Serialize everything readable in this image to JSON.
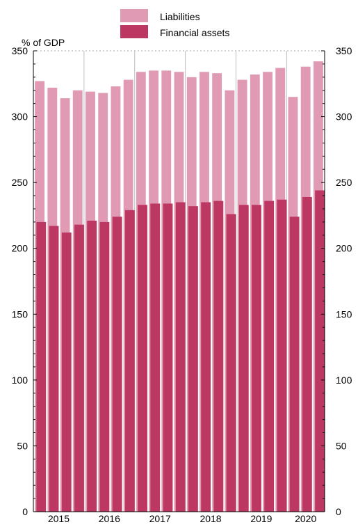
{
  "chart_data": {
    "type": "bar",
    "unit_label": "% of GDP",
    "ylim": [
      0,
      350
    ],
    "yticks": [
      0,
      50,
      100,
      150,
      200,
      250,
      300,
      350
    ],
    "year_labels": [
      "2015",
      "2016",
      "2017",
      "2018",
      "2019",
      "2020"
    ],
    "grid": "dotted line at 350 only",
    "legend_position": "top-center",
    "overlap": true,
    "series": [
      {
        "name": "Liabilities",
        "color": "#E09AB4",
        "values": [
          327,
          322,
          314,
          320,
          319,
          318,
          323,
          328,
          334,
          335,
          335,
          334,
          330,
          334,
          333,
          320,
          328,
          332,
          334,
          337,
          315,
          338,
          342
        ]
      },
      {
        "name": "Financial assets",
        "color": "#BC3761",
        "values": [
          220,
          217,
          212,
          218,
          221,
          220,
          224,
          229,
          233,
          234,
          234,
          235,
          232,
          235,
          236,
          226,
          233,
          233,
          236,
          237,
          224,
          239,
          244
        ]
      }
    ]
  }
}
